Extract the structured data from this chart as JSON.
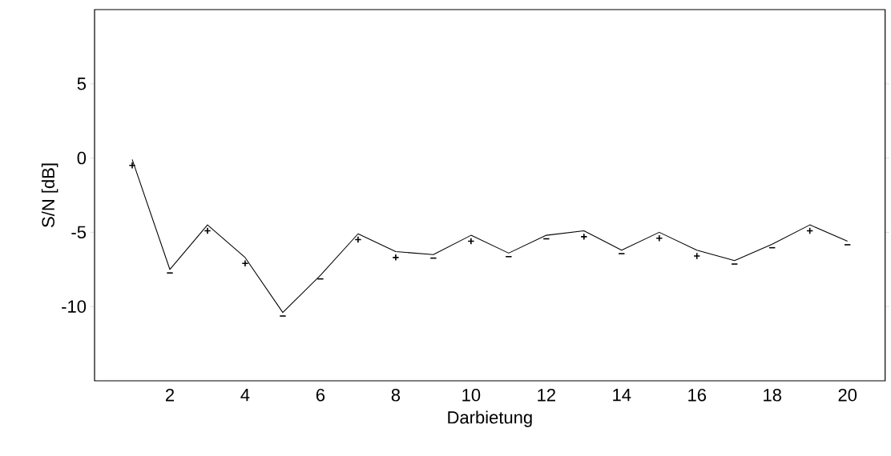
{
  "chart_data": {
    "type": "line",
    "xlabel": "Darbietung",
    "ylabel": "S/N [dB]",
    "x": [
      1,
      2,
      3,
      4,
      5,
      6,
      7,
      8,
      9,
      10,
      11,
      12,
      13,
      14,
      15,
      16,
      17,
      18,
      19,
      20
    ],
    "values": [
      -0.1,
      -7.5,
      -4.5,
      -6.7,
      -10.4,
      -7.9,
      -5.1,
      -6.3,
      -6.5,
      -5.2,
      -6.4,
      -5.2,
      -4.9,
      -6.2,
      -5.0,
      -6.2,
      -6.9,
      -5.8,
      -4.5,
      -5.6
    ],
    "value_labels": [
      "+",
      "−",
      "+",
      "+",
      "−",
      "−",
      "+",
      "+",
      "−",
      "+",
      "−",
      "−",
      "+",
      "−",
      "+",
      "+",
      "−",
      "−",
      "+",
      "−"
    ],
    "color": "#000000",
    "xlim": [
      0,
      21
    ],
    "ylim": [
      -15,
      10
    ],
    "xticks": [
      2,
      4,
      6,
      8,
      10,
      12,
      14,
      16,
      18,
      20
    ],
    "yticks": [
      -10,
      -5,
      0,
      5
    ]
  }
}
